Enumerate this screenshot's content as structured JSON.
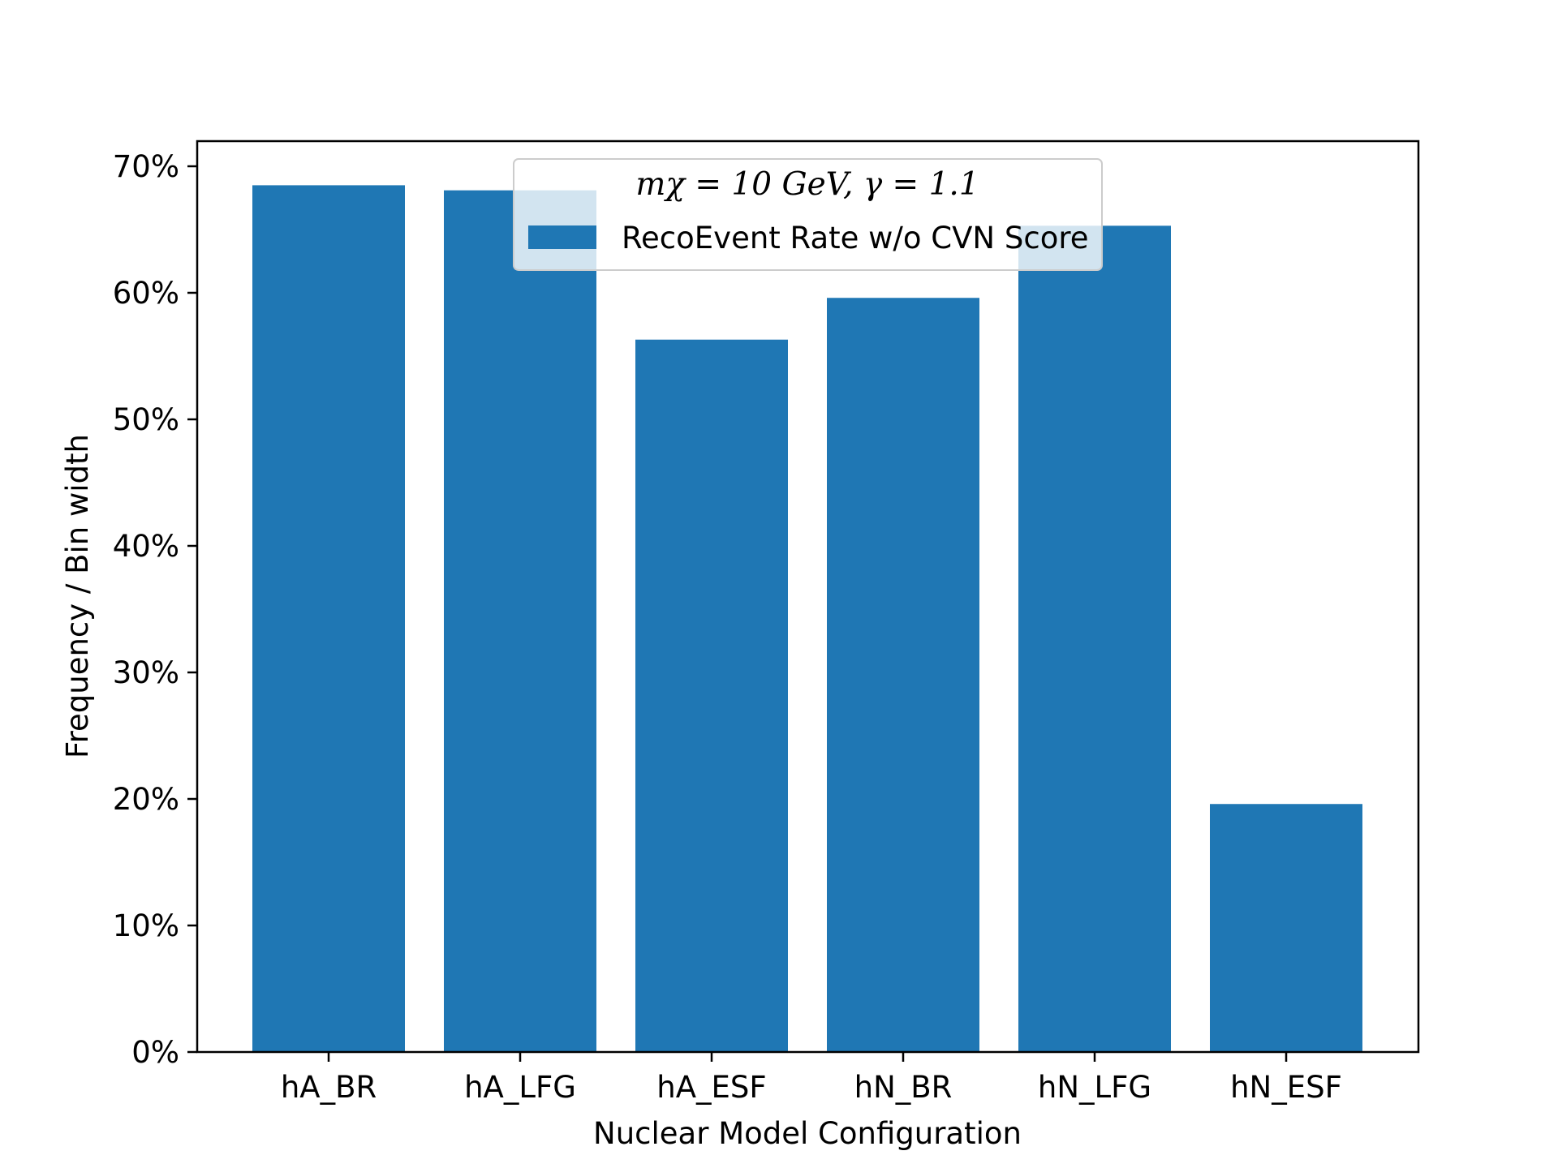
{
  "chart_data": {
    "type": "bar",
    "categories": [
      "hA_BR",
      "hA_LFG",
      "hA_ESF",
      "hN_BR",
      "hN_LFG",
      "hN_ESF"
    ],
    "series": [
      {
        "name": "RecoEvent Rate w/o CVN Score",
        "values": [
          68.5,
          68.1,
          56.3,
          59.6,
          65.3,
          19.6
        ]
      }
    ],
    "xlabel": "Nuclear Model Configuration",
    "ylabel": "Frequency / Bin width",
    "ylim": [
      0,
      70
    ],
    "yticks": [
      0,
      10,
      20,
      30,
      40,
      50,
      60,
      70
    ],
    "ytick_labels": [
      "0%",
      "10%",
      "20%",
      "30%",
      "40%",
      "50%",
      "60%",
      "70%"
    ],
    "legend_title": "mχ = 10  GeV, γ = 1.1",
    "legend_position": "top-center",
    "grid": false,
    "bar_color": "#1f77b4"
  }
}
